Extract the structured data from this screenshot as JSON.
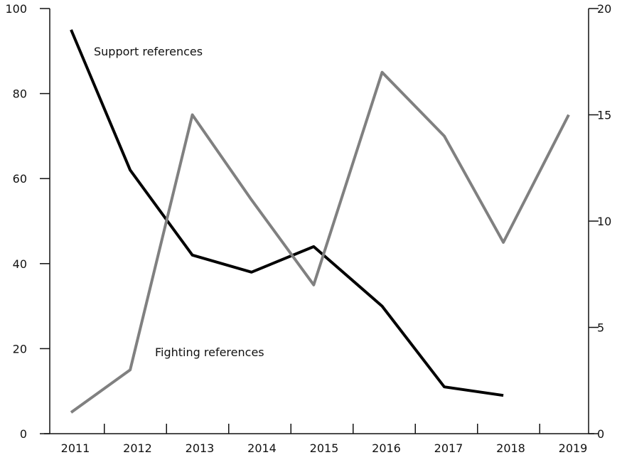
{
  "chart_data": {
    "type": "line",
    "x_tick_labels": [
      "2011",
      "2012",
      "2013",
      "2014",
      "2015",
      "2016",
      "2017",
      "2018",
      "2019"
    ],
    "y_left": {
      "ylim": [
        0,
        100
      ],
      "ticks": [
        "0",
        "20",
        "40",
        "60",
        "80",
        "100"
      ]
    },
    "y_right": {
      "ylim": [
        0,
        20
      ],
      "ticks": [
        "0",
        "5",
        "10",
        "15",
        "20"
      ]
    },
    "series": [
      {
        "name": "Support references",
        "axis": "left",
        "color": "#000000",
        "x": [
          2011.0,
          2011.95,
          2012.95,
          2013.9,
          2014.9,
          2016.0,
          2017.0,
          2017.95
        ],
        "values": [
          95,
          62,
          42,
          38,
          44,
          30,
          11,
          9
        ]
      },
      {
        "name": "Fighting references",
        "axis": "right",
        "color": "#808080",
        "x": [
          2011.0,
          2011.95,
          2012.95,
          2013.9,
          2014.9,
          2016.0,
          2017.0,
          2017.95,
          2019.0
        ],
        "values": [
          1,
          3,
          15,
          11,
          7,
          17,
          14,
          9,
          15
        ]
      }
    ]
  }
}
